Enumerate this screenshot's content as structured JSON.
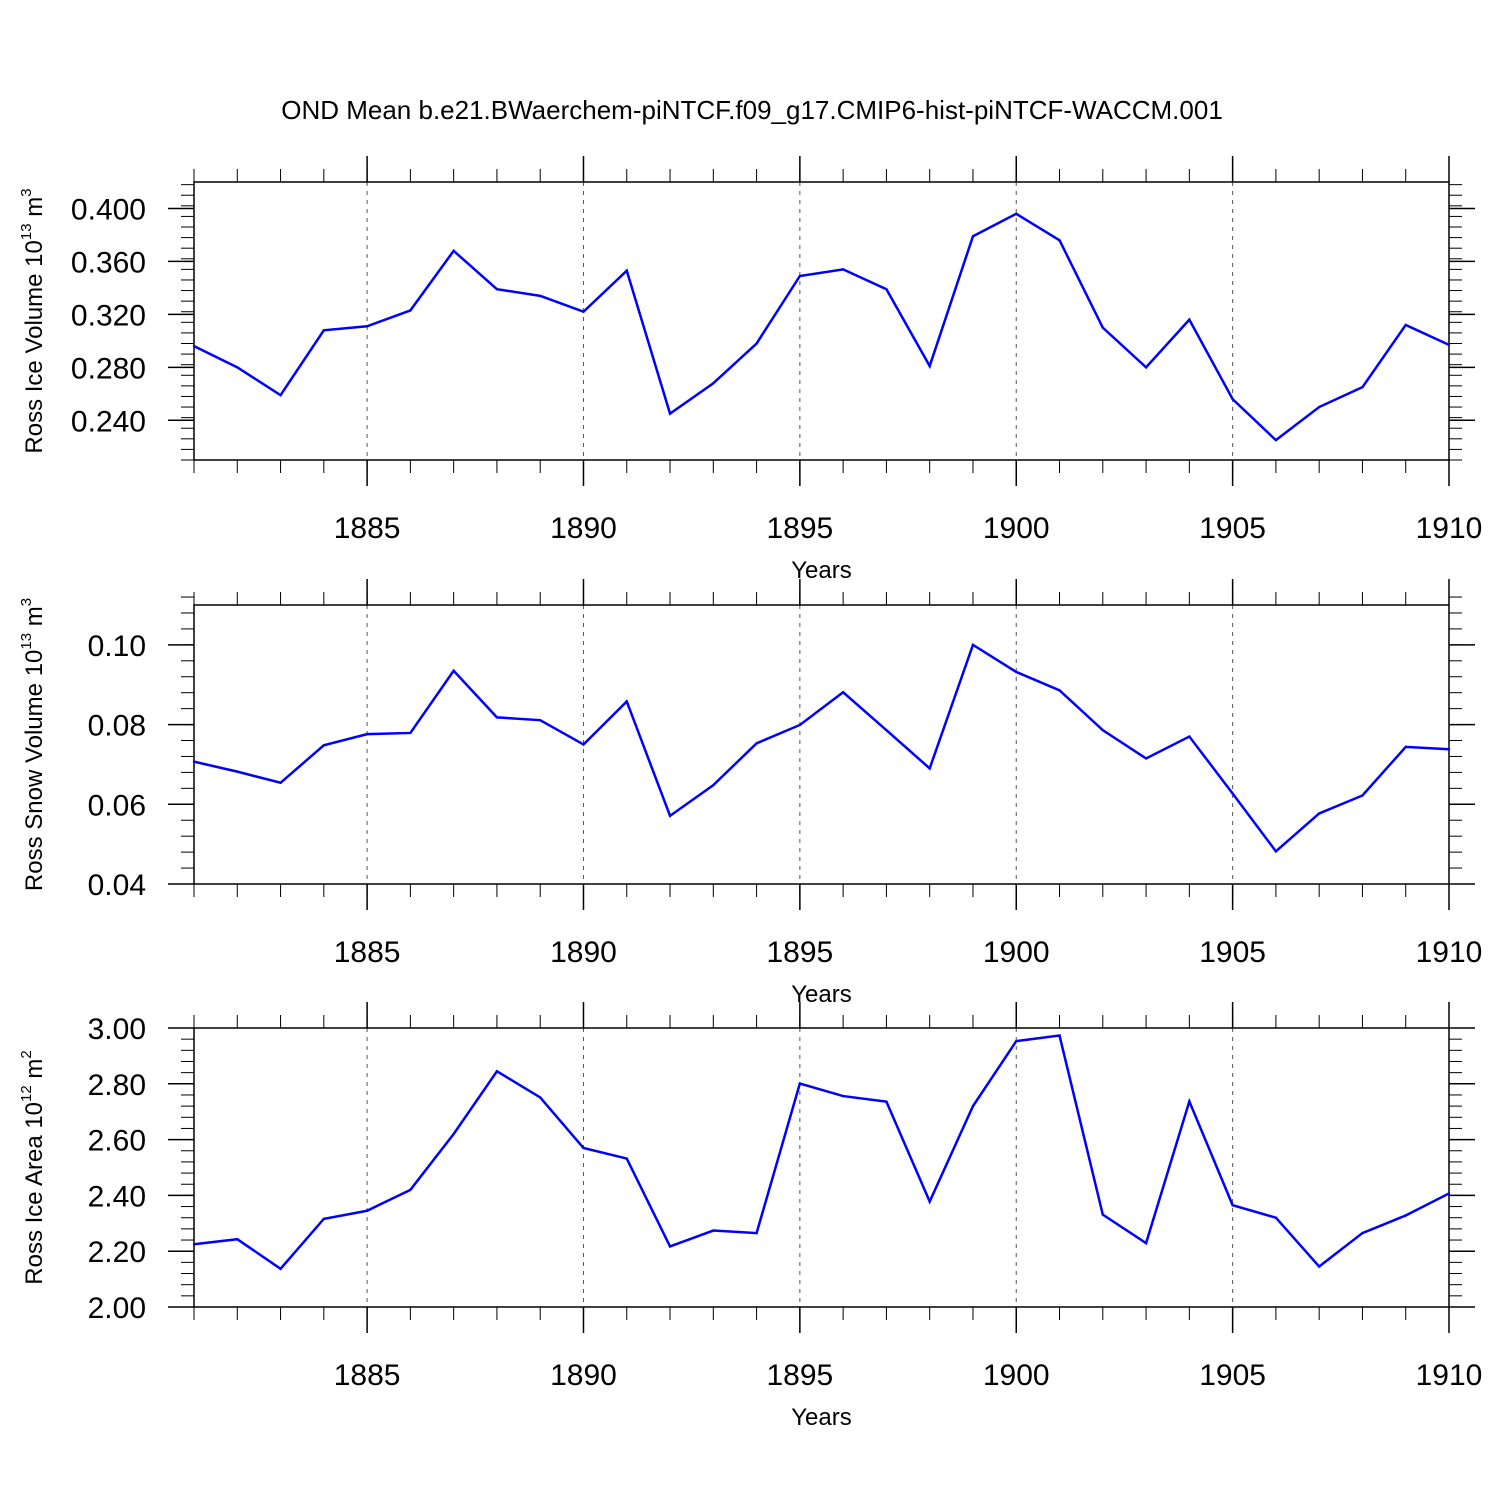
{
  "chart_data": {
    "title": "OND Mean b.e21.BWaerchem-piNTCF.f09_g17.CMIP6-hist-piNTCF-WACCM.001",
    "years": [
      1881,
      1882,
      1883,
      1884,
      1885,
      1886,
      1887,
      1888,
      1889,
      1890,
      1891,
      1892,
      1893,
      1894,
      1895,
      1896,
      1897,
      1898,
      1899,
      1900,
      1901,
      1902,
      1903,
      1904,
      1905,
      1906,
      1907,
      1908,
      1909,
      1910
    ],
    "xlim": [
      1881,
      1910
    ],
    "xticks": [
      1885,
      1890,
      1895,
      1900,
      1905,
      1910
    ],
    "xtick_labels": [
      "1885",
      "1890",
      "1895",
      "1900",
      "1905",
      "1910"
    ],
    "panels": [
      {
        "type": "line",
        "name": "ice-volume",
        "xlabel": "Years",
        "ylabel_text": "Ross Ice Volume 10",
        "ylabel_exp": "13",
        "ylabel_unit": " m",
        "ylabel_unit_exp": "3",
        "ylim": [
          0.21,
          0.42
        ],
        "yticks": [
          0.24,
          0.28,
          0.32,
          0.36,
          0.4
        ],
        "ytick_labels": [
          "0.240",
          "0.280",
          "0.320",
          "0.360",
          "0.400"
        ],
        "yminor": 0.008,
        "color": "#0000ff",
        "values": [
          0.296,
          0.28,
          0.259,
          0.308,
          0.311,
          0.323,
          0.368,
          0.339,
          0.334,
          0.322,
          0.353,
          0.245,
          0.268,
          0.298,
          0.349,
          0.354,
          0.339,
          0.281,
          0.379,
          0.396,
          0.376,
          0.31,
          0.28,
          0.316,
          0.256,
          0.225,
          0.25,
          0.265,
          0.312,
          0.297
        ]
      },
      {
        "type": "line",
        "name": "snow-volume",
        "xlabel": "Years",
        "ylabel_text": "Ross Snow Volume 10",
        "ylabel_exp": "13",
        "ylabel_unit": " m",
        "ylabel_unit_exp": "3",
        "ylim": [
          0.04,
          0.11
        ],
        "yticks": [
          0.04,
          0.06,
          0.08,
          0.1
        ],
        "ytick_labels": [
          "0.04",
          "0.06",
          "0.08",
          "0.10"
        ],
        "yminor": 0.004,
        "color": "#0000ff",
        "values": [
          0.0707,
          0.0682,
          0.0654,
          0.0748,
          0.0776,
          0.0779,
          0.0935,
          0.0818,
          0.0811,
          0.075,
          0.0858,
          0.0571,
          0.0648,
          0.0753,
          0.0799,
          0.0881,
          0.0786,
          0.069,
          0.1,
          0.0932,
          0.0886,
          0.0786,
          0.0715,
          0.077,
          0.0627,
          0.0482,
          0.0577,
          0.0622,
          0.0744,
          0.0738
        ]
      },
      {
        "type": "line",
        "name": "ice-area",
        "xlabel": "Years",
        "ylabel_text": "Ross Ice Area 10",
        "ylabel_exp": "12",
        "ylabel_unit": " m",
        "ylabel_unit_exp": "2",
        "ylim": [
          2.0,
          3.0
        ],
        "yticks": [
          2.0,
          2.2,
          2.4,
          2.6,
          2.8,
          3.0
        ],
        "ytick_labels": [
          "2.00",
          "2.20",
          "2.40",
          "2.60",
          "2.80",
          "3.00"
        ],
        "yminor": 0.04,
        "color": "#0000ff",
        "values": [
          2.225,
          2.243,
          2.137,
          2.316,
          2.345,
          2.42,
          2.62,
          2.845,
          2.751,
          2.57,
          2.532,
          2.217,
          2.274,
          2.265,
          2.801,
          2.756,
          2.736,
          2.378,
          2.72,
          2.953,
          2.973,
          2.331,
          2.229,
          2.737,
          2.365,
          2.32,
          2.145,
          2.265,
          2.328,
          2.407
        ]
      }
    ]
  }
}
